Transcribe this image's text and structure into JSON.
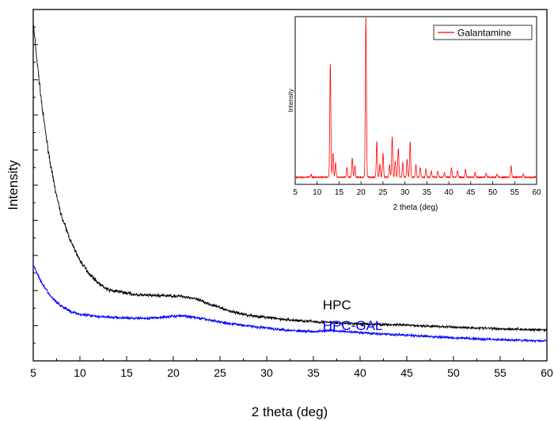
{
  "chart_data": [
    {
      "type": "line",
      "xlabel": "2 theta (deg)",
      "ylabel": "Intensity",
      "xlim": [
        5,
        60
      ],
      "ylim": [
        0,
        100
      ],
      "y_tick_labels_shown": false,
      "x_ticks": [
        5,
        10,
        15,
        20,
        25,
        30,
        35,
        40,
        45,
        50,
        55,
        60
      ],
      "grid": false,
      "series": [
        {
          "name": "HPC",
          "color": "#000000",
          "x": [
            5,
            5.5,
            6,
            6.5,
            7,
            7.5,
            8,
            9,
            10,
            11,
            12,
            13,
            14,
            15,
            16,
            17,
            18,
            19,
            20,
            21,
            22,
            23,
            24,
            25,
            26,
            27,
            28,
            30,
            32,
            35,
            38,
            40,
            45,
            50,
            55,
            60
          ],
          "y": [
            100,
            86,
            73,
            63,
            54,
            47,
            41,
            33,
            27,
            23,
            20,
            18,
            17.5,
            17,
            16.5,
            16.3,
            16.2,
            16.2,
            16.1,
            16,
            15.5,
            14.5,
            13.5,
            12.5,
            11.5,
            10.8,
            10.2,
            9.5,
            8.8,
            8.2,
            7.7,
            7.5,
            7.1,
            6.5,
            6.0,
            5.6
          ]
        },
        {
          "name": "HPC-GAL",
          "color": "#0000ff",
          "x": [
            5,
            5.5,
            6,
            7,
            8,
            9,
            10,
            12,
            14,
            16,
            18,
            20,
            21,
            22,
            24,
            26,
            28,
            30,
            33,
            35,
            37,
            38,
            40,
            45,
            50,
            55,
            60
          ],
          "y": [
            26,
            22.5,
            19.5,
            15.5,
            13,
            11.3,
            10.5,
            9.8,
            9.4,
            9.2,
            9.3,
            9.9,
            10,
            9.6,
            8.6,
            7.6,
            6.9,
            6.2,
            5.4,
            5.2,
            5.4,
            5.2,
            4.8,
            4,
            3.2,
            2.6,
            2.2
          ]
        }
      ],
      "annotations": [
        {
          "text": "HPC",
          "color": "#000000",
          "x": 36,
          "y": 12
        },
        {
          "text": "HPC-GAL",
          "color": "#0000ff",
          "x": 36,
          "y": 5.6
        }
      ]
    },
    {
      "type": "line",
      "title": "",
      "xlabel": "2 theta (deg)",
      "ylabel": "Intensity",
      "xlim": [
        5,
        60
      ],
      "ylim": [
        0,
        100
      ],
      "x_ticks": [
        5,
        10,
        15,
        20,
        25,
        30,
        35,
        40,
        45,
        50,
        55,
        60
      ],
      "legend_position": "top-right",
      "series": [
        {
          "name": "Galantamine",
          "color": "#ff0000",
          "baseline": 2,
          "peaks": [
            {
              "x": 8.6,
              "y": 1.5
            },
            {
              "x": 13.0,
              "y": 70
            },
            {
              "x": 13.6,
              "y": 15
            },
            {
              "x": 14.2,
              "y": 9
            },
            {
              "x": 16.8,
              "y": 6
            },
            {
              "x": 18.0,
              "y": 12
            },
            {
              "x": 18.6,
              "y": 7
            },
            {
              "x": 21.1,
              "y": 100
            },
            {
              "x": 23.6,
              "y": 22
            },
            {
              "x": 24.3,
              "y": 8
            },
            {
              "x": 25.0,
              "y": 15
            },
            {
              "x": 26.5,
              "y": 8
            },
            {
              "x": 27.1,
              "y": 25
            },
            {
              "x": 27.8,
              "y": 10
            },
            {
              "x": 28.5,
              "y": 18
            },
            {
              "x": 29.5,
              "y": 9
            },
            {
              "x": 30.5,
              "y": 11
            },
            {
              "x": 31.2,
              "y": 22
            },
            {
              "x": 32.5,
              "y": 8
            },
            {
              "x": 33.5,
              "y": 6
            },
            {
              "x": 34.8,
              "y": 5
            },
            {
              "x": 36.0,
              "y": 4
            },
            {
              "x": 37.5,
              "y": 4
            },
            {
              "x": 39.0,
              "y": 3
            },
            {
              "x": 40.6,
              "y": 6
            },
            {
              "x": 42.0,
              "y": 4
            },
            {
              "x": 43.8,
              "y": 5
            },
            {
              "x": 46.0,
              "y": 3
            },
            {
              "x": 48.5,
              "y": 2.5
            },
            {
              "x": 51.0,
              "y": 2
            },
            {
              "x": 54.2,
              "y": 7
            },
            {
              "x": 57.0,
              "y": 2
            }
          ]
        }
      ]
    }
  ]
}
